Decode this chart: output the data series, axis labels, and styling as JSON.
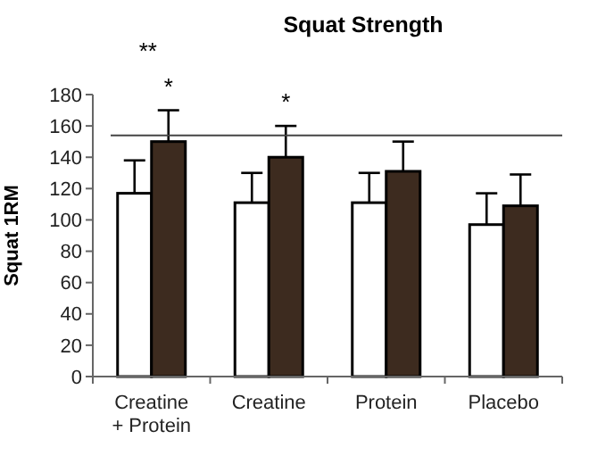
{
  "chart_data": {
    "type": "bar",
    "title": "Squat Strength",
    "ylabel": "Squat 1RM",
    "categories": [
      "Creatine + Protein",
      "Creatine",
      "Protein",
      "Placebo"
    ],
    "series": [
      {
        "color": "#ffffff",
        "values": [
          117,
          111,
          111,
          97
        ],
        "errors": [
          [
            117,
            138
          ],
          [
            111,
            130
          ],
          [
            111,
            130
          ],
          [
            97,
            117
          ]
        ]
      },
      {
        "color": "#3d2b1f",
        "values": [
          150,
          140,
          131,
          109
        ],
        "errors": [
          [
            150,
            170
          ],
          [
            140,
            160
          ],
          [
            131,
            150
          ],
          [
            109,
            129
          ]
        ]
      }
    ],
    "ylim": [
      0,
      180
    ],
    "yticks": [
      0,
      20,
      40,
      60,
      80,
      100,
      120,
      140,
      160,
      180
    ],
    "ref_lines": [
      {
        "axis": "y",
        "value": 154
      }
    ],
    "annotations": [
      "**",
      {
        "text": "*",
        "x": "Creatine + Protein",
        "y": 170
      },
      {
        "text": "*",
        "x": "Creatine",
        "y": 160
      }
    ]
  }
}
